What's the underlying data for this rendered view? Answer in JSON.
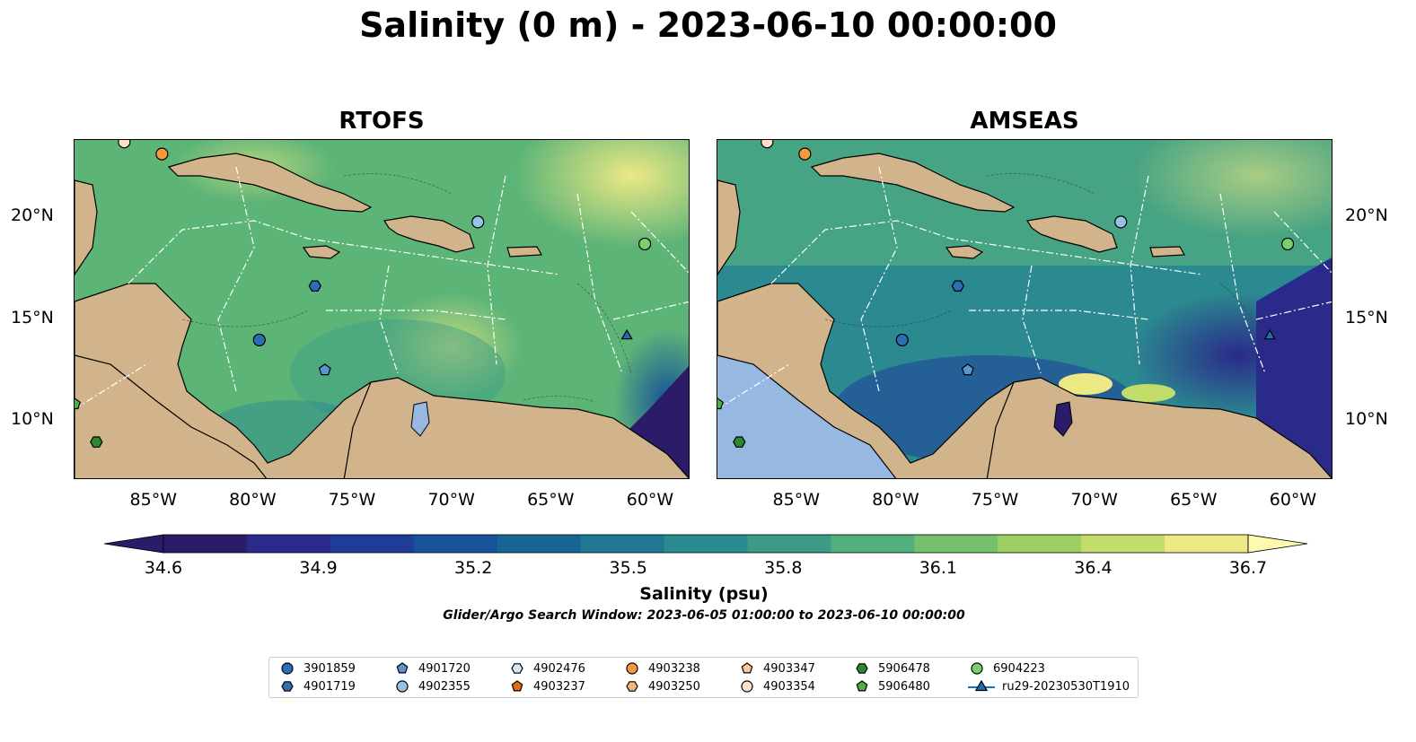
{
  "title": "Salinity (0 m) - 2023-06-10 00:00:00",
  "panels": [
    {
      "title": "RTOFS"
    },
    {
      "title": "AMSEAS"
    }
  ],
  "axes": {
    "lon_ticks": [
      "85°W",
      "80°W",
      "75°W",
      "70°W",
      "65°W",
      "60°W"
    ],
    "lat_ticks": [
      "20°N",
      "15°N",
      "10°N"
    ]
  },
  "colorbar": {
    "label": "Salinity (psu)",
    "ticks": [
      "34.6",
      "34.9",
      "35.2",
      "35.5",
      "35.8",
      "36.1",
      "36.4",
      "36.7"
    ],
    "colors": [
      "#2b1b68",
      "#2a2a8a",
      "#1f3c99",
      "#17529a",
      "#186595",
      "#1f7792",
      "#2b8990",
      "#3a9b87",
      "#52ae7d",
      "#74c06d",
      "#9bcf62",
      "#c3dd6b",
      "#ece985"
    ]
  },
  "search_window": "Glider/Argo Search Window: 2023-06-05 01:00:00 to 2023-06-10 00:00:00",
  "legend": [
    {
      "label": "3901859",
      "marker": "circle",
      "color": "#2a6fb5"
    },
    {
      "label": "4901719",
      "marker": "hexagon",
      "color": "#2a6fb5"
    },
    {
      "label": "4901720",
      "marker": "pentagon",
      "color": "#5a95cf"
    },
    {
      "label": "4902355",
      "marker": "circle",
      "color": "#97c2e6"
    },
    {
      "label": "4902476",
      "marker": "hexagon",
      "color": "#d6e8f6"
    },
    {
      "label": "4903237",
      "marker": "pentagon",
      "color": "#e66a11"
    },
    {
      "label": "4903238",
      "marker": "circle",
      "color": "#f79a3d"
    },
    {
      "label": "4903250",
      "marker": "hexagon",
      "color": "#f9b377"
    },
    {
      "label": "4903347",
      "marker": "pentagon",
      "color": "#fbc99b"
    },
    {
      "label": "4903354",
      "marker": "circle",
      "color": "#fde0c6"
    },
    {
      "label": "5906478",
      "marker": "hexagon",
      "color": "#2a8a2f"
    },
    {
      "label": "5906480",
      "marker": "pentagon",
      "color": "#4db04a"
    },
    {
      "label": "6904223",
      "marker": "circle",
      "color": "#7ccf6e"
    },
    {
      "label": "ru29-20230530T1910",
      "marker": "triangle-line",
      "color": "#1f6fb5"
    }
  ],
  "chart_data": {
    "type": "heatmap",
    "variable": "Salinity (psu)",
    "depth": "0 m",
    "time": "2023-06-10 00:00:00",
    "xlim": [
      -89,
      -58
    ],
    "ylim": [
      7,
      24
    ],
    "colorbar_range": [
      34.6,
      36.7
    ],
    "colormap": "haline (extend both)",
    "land_color": "#d2b48c",
    "glider_argo_positions": [
      {
        "id": "3901859",
        "lon": -79.7,
        "lat": 14.0
      },
      {
        "id": "4901719",
        "lon": -76.9,
        "lat": 16.7
      },
      {
        "id": "4901720",
        "lon": -76.4,
        "lat": 12.5
      },
      {
        "id": "4902355",
        "lon": -68.7,
        "lat": 19.9
      },
      {
        "id": "4903238",
        "lon": -84.6,
        "lat": 23.3
      },
      {
        "id": "4903354",
        "lon": -86.5,
        "lat": 23.9
      },
      {
        "id": "5906478",
        "lon": -87.9,
        "lat": 8.9
      },
      {
        "id": "5906480",
        "lon": -89.0,
        "lat": 10.8
      },
      {
        "id": "6904223",
        "lon": -60.3,
        "lat": 18.8
      },
      {
        "id": "ru29-20230530T1910",
        "lon": -61.2,
        "lat": 14.2
      }
    ]
  }
}
